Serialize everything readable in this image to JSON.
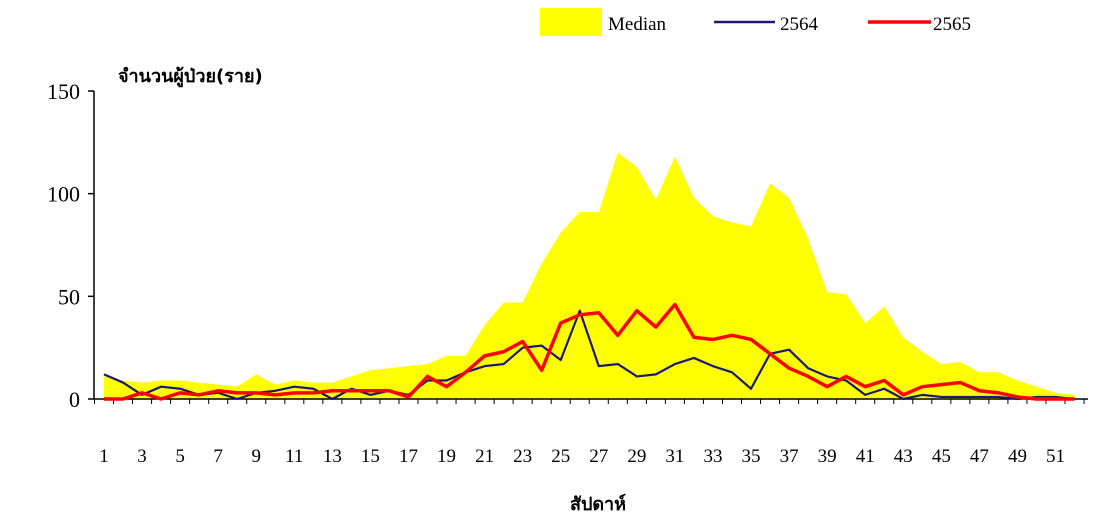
{
  "chart_data": {
    "type": "area",
    "title": "",
    "ylabel": "จำนวนผู้ป่วย(ราย)",
    "xlabel": "สัปดาห์",
    "ylim": [
      0,
      150
    ],
    "yticks": [
      0,
      50,
      100,
      150
    ],
    "x": [
      1,
      2,
      3,
      4,
      5,
      6,
      7,
      8,
      9,
      10,
      11,
      12,
      13,
      14,
      15,
      16,
      17,
      18,
      19,
      20,
      21,
      22,
      23,
      24,
      25,
      26,
      27,
      28,
      29,
      30,
      31,
      32,
      33,
      34,
      35,
      36,
      37,
      38,
      39,
      40,
      41,
      42,
      43,
      44,
      45,
      46,
      47,
      48,
      49,
      50,
      51,
      52
    ],
    "xtick_labels": [
      "1",
      "3",
      "5",
      "7",
      "9",
      "11",
      "13",
      "15",
      "17",
      "19",
      "21",
      "23",
      "25",
      "27",
      "29",
      "31",
      "33",
      "35",
      "37",
      "39",
      "41",
      "43",
      "45",
      "47",
      "49",
      "51"
    ],
    "legend_position": "top",
    "series": [
      {
        "name": "Median",
        "kind": "area",
        "color": "#ffff00",
        "values": [
          11,
          9,
          8,
          9,
          9,
          8,
          7,
          6,
          12,
          7,
          9,
          8,
          8,
          11,
          14,
          15,
          16,
          17,
          21,
          21,
          36,
          47,
          47,
          66,
          81,
          91,
          91,
          120,
          113,
          97,
          118,
          98,
          89,
          86,
          84,
          105,
          98,
          78,
          52,
          51,
          37,
          45,
          30,
          23,
          17,
          18,
          13,
          13,
          9,
          6,
          3,
          2
        ]
      },
      {
        "name": "2564",
        "kind": "line",
        "color": "#1a1a6e",
        "values": [
          12,
          8,
          2,
          6,
          5,
          2,
          3,
          0,
          3,
          4,
          6,
          5,
          0,
          5,
          2,
          4,
          2,
          9,
          9,
          13,
          16,
          17,
          25,
          26,
          19,
          43,
          16,
          17,
          11,
          12,
          17,
          20,
          16,
          13,
          5,
          22,
          24,
          15,
          11,
          9,
          2,
          5,
          0,
          2,
          1,
          1,
          1,
          1,
          0,
          1,
          1,
          0
        ]
      },
      {
        "name": "2565",
        "kind": "line",
        "color": "#ff0000",
        "values": [
          0,
          0,
          3,
          0,
          3,
          2,
          4,
          3,
          3,
          2,
          3,
          3,
          4,
          4,
          4,
          4,
          1,
          11,
          6,
          13,
          21,
          23,
          28,
          14,
          37,
          41,
          42,
          31,
          43,
          35,
          46,
          30,
          29,
          31,
          29,
          22,
          15,
          11,
          6,
          11,
          6,
          9,
          2,
          6,
          7,
          8,
          4,
          3,
          1,
          0,
          0,
          0
        ]
      }
    ]
  }
}
